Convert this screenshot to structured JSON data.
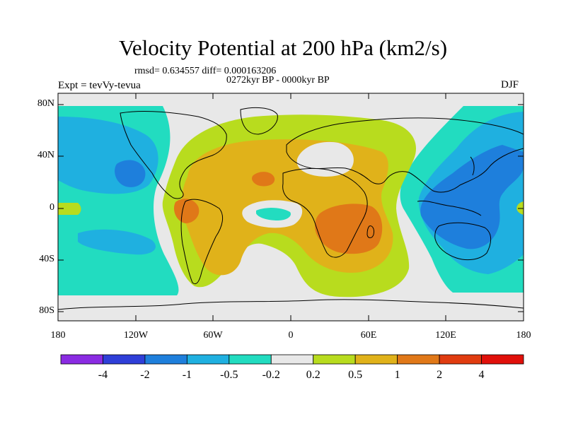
{
  "title": "Velocity Potential at 200 hPa (km2/s)",
  "stats": "rmsd= 0.634557  diff= 0.000163206",
  "period": "0272kyr BP - 0000kyr BP",
  "experiment": "Expt = tevVy-tevua",
  "season": "DJF",
  "axes": {
    "y_ticks": [
      "80N",
      "40N",
      "0",
      "40S",
      "80S"
    ],
    "x_ticks": [
      "180",
      "120W",
      "60W",
      "0",
      "60E",
      "120E",
      "180"
    ]
  },
  "colorbar": {
    "labels": [
      "-4",
      "-2",
      "-1",
      "-0.5",
      "-0.2",
      "0.2",
      "0.5",
      "1",
      "2",
      "4"
    ],
    "colors": [
      "#8a2be2",
      "#2f3fd8",
      "#1e7fdc",
      "#1fb0e0",
      "#22dcc0",
      "#e8e8e8",
      "#b8dc1e",
      "#e0b21a",
      "#e07818",
      "#e03c10",
      "#e0100a"
    ]
  },
  "palette": {
    "land_line": "#000000",
    "neutral": "#e8e8e8",
    "pos1": "#b8dc1e",
    "pos2": "#e0b21a",
    "pos3": "#e07818",
    "neg1": "#22dcc0",
    "neg2": "#1fb0e0",
    "neg3": "#1e7fdc"
  }
}
